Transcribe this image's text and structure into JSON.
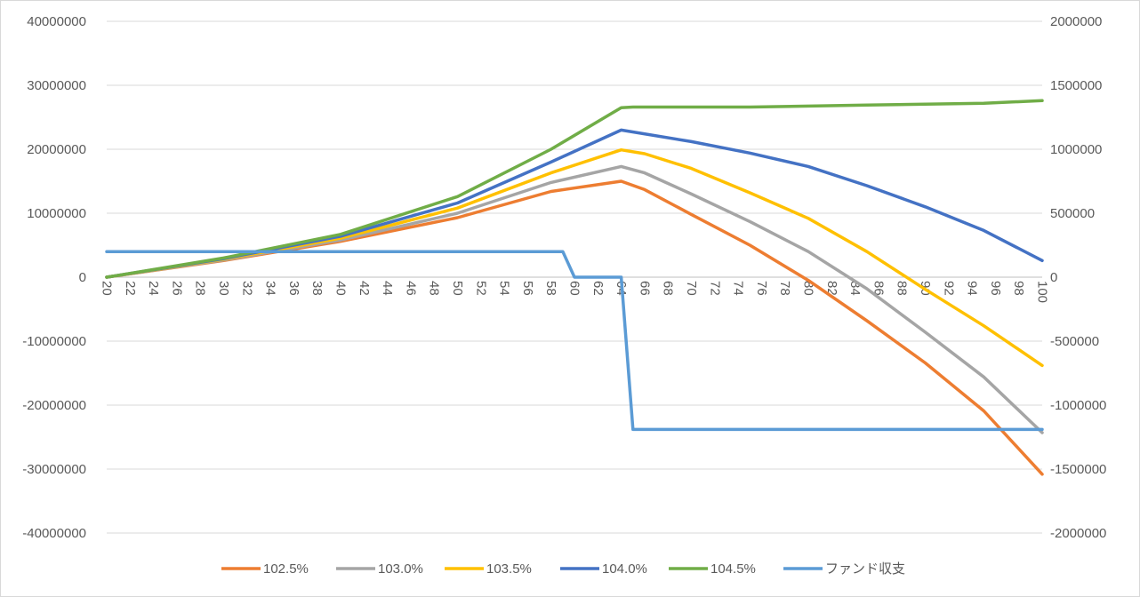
{
  "chart_data": {
    "type": "line",
    "title": "",
    "xlabel": "",
    "ylabel": "",
    "x_ticks": [
      20,
      22,
      24,
      26,
      28,
      30,
      32,
      34,
      36,
      38,
      40,
      42,
      44,
      46,
      48,
      50,
      52,
      54,
      56,
      58,
      60,
      62,
      64,
      66,
      68,
      70,
      72,
      74,
      76,
      78,
      80,
      82,
      84,
      86,
      88,
      90,
      92,
      94,
      96,
      98,
      100
    ],
    "x_range": [
      20,
      100
    ],
    "y_left": {
      "range": [
        -40000000,
        40000000
      ],
      "ticks": [
        40000000,
        30000000,
        20000000,
        10000000,
        0,
        -10000000,
        -20000000,
        -30000000,
        -40000000
      ],
      "tick_labels": [
        "40000000",
        "30000000",
        "20000000",
        "10000000",
        "0",
        "-10000000",
        "-20000000",
        "-30000000",
        "-40000000"
      ]
    },
    "y_right": {
      "range": [
        -2000000,
        2000000
      ],
      "ticks": [
        2000000,
        1500000,
        1000000,
        500000,
        0,
        -500000,
        -1000000,
        -1500000,
        -2000000
      ],
      "tick_labels": [
        "2000000",
        "1500000",
        "1000000",
        "500000",
        "0",
        "-500000",
        "-1000000",
        "-1500000",
        "-2000000"
      ]
    },
    "grid": "horizontal",
    "legend_position": "bottom",
    "series": [
      {
        "name": "102.5%",
        "color": "#ED7D31",
        "axis": "left",
        "points": [
          [
            20,
            0
          ],
          [
            30,
            2600000
          ],
          [
            40,
            5600000
          ],
          [
            50,
            9300000
          ],
          [
            58,
            13400000
          ],
          [
            64,
            15000000
          ],
          [
            66,
            13700000
          ],
          [
            70,
            9800000
          ],
          [
            75,
            5000000
          ],
          [
            80,
            -500000
          ],
          [
            85,
            -6800000
          ],
          [
            90,
            -13400000
          ],
          [
            95,
            -20900000
          ],
          [
            100,
            -30800000
          ]
        ]
      },
      {
        "name": "103.0%",
        "color": "#A5A5A5",
        "axis": "left",
        "points": [
          [
            20,
            0
          ],
          [
            30,
            2700000
          ],
          [
            40,
            5800000
          ],
          [
            50,
            10000000
          ],
          [
            58,
            14800000
          ],
          [
            64,
            17300000
          ],
          [
            66,
            16300000
          ],
          [
            70,
            13000000
          ],
          [
            75,
            8700000
          ],
          [
            80,
            4000000
          ],
          [
            85,
            -1800000
          ],
          [
            90,
            -8600000
          ],
          [
            95,
            -15600000
          ],
          [
            100,
            -24300000
          ]
        ]
      },
      {
        "name": "103.5%",
        "color": "#FFC000",
        "axis": "left",
        "points": [
          [
            20,
            0
          ],
          [
            30,
            2800000
          ],
          [
            40,
            6100000
          ],
          [
            50,
            10800000
          ],
          [
            58,
            16300000
          ],
          [
            64,
            19900000
          ],
          [
            66,
            19300000
          ],
          [
            70,
            17000000
          ],
          [
            75,
            13200000
          ],
          [
            80,
            9200000
          ],
          [
            85,
            4000000
          ],
          [
            90,
            -1900000
          ],
          [
            95,
            -7600000
          ],
          [
            100,
            -13800000
          ]
        ]
      },
      {
        "name": "104.0%",
        "color": "#4472C4",
        "axis": "left",
        "points": [
          [
            20,
            0
          ],
          [
            30,
            2900000
          ],
          [
            40,
            6400000
          ],
          [
            50,
            11600000
          ],
          [
            58,
            18000000
          ],
          [
            64,
            23000000
          ],
          [
            70,
            21200000
          ],
          [
            75,
            19400000
          ],
          [
            80,
            17300000
          ],
          [
            85,
            14300000
          ],
          [
            90,
            11000000
          ],
          [
            95,
            7300000
          ],
          [
            100,
            2600000
          ]
        ]
      },
      {
        "name": "104.5%",
        "color": "#70AD47",
        "axis": "left",
        "points": [
          [
            20,
            0
          ],
          [
            30,
            3000000
          ],
          [
            40,
            6700000
          ],
          [
            50,
            12600000
          ],
          [
            58,
            20000000
          ],
          [
            64,
            26500000
          ],
          [
            65,
            26600000
          ],
          [
            75,
            26600000
          ],
          [
            85,
            26900000
          ],
          [
            95,
            27200000
          ],
          [
            100,
            27600000
          ]
        ]
      },
      {
        "name": "ファンド収支",
        "color": "#5B9BD5",
        "axis": "right",
        "points": [
          [
            20,
            200000
          ],
          [
            59,
            200000
          ],
          [
            60,
            0
          ],
          [
            64,
            0
          ],
          [
            65,
            -1190000
          ],
          [
            100,
            -1190000
          ]
        ]
      }
    ]
  }
}
